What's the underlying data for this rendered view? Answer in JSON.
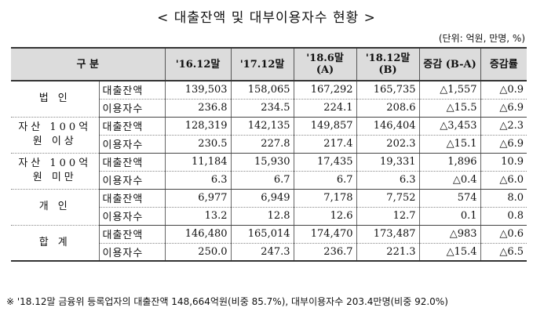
{
  "title": "< 대출잔액 및 대부이용자수 현황 >",
  "unit": "(단위: 억원, 만명, %)",
  "headers": {
    "category": "구  분",
    "c1": "'16.12말",
    "c2": "'17.12말",
    "c3": "'18.6말 (A)",
    "c4": "'18.12말 (B)",
    "change": "증감 (B-A)",
    "rate": "증감률"
  },
  "groups": [
    {
      "label": "법 인",
      "rows": [
        {
          "sub": "대출잔액",
          "c1": "139,503",
          "c2": "158,065",
          "c3": "167,292",
          "c4": "165,735",
          "change": "△1,557",
          "rate": "△0.9"
        },
        {
          "sub": "이용자수",
          "c1": "236.8",
          "c2": "234.5",
          "c3": "224.1",
          "c4": "208.6",
          "change": "△15.5",
          "rate": "△6.9"
        }
      ]
    },
    {
      "label": "자산 100억원 이상",
      "rows": [
        {
          "sub": "대출잔액",
          "c1": "128,319",
          "c2": "142,135",
          "c3": "149,857",
          "c4": "146,404",
          "change": "△3,453",
          "rate": "△2.3"
        },
        {
          "sub": "이용자수",
          "c1": "230.5",
          "c2": "227.8",
          "c3": "217.4",
          "c4": "202.3",
          "change": "△15.1",
          "rate": "△6.9"
        }
      ]
    },
    {
      "label": "자산 100억원 미만",
      "rows": [
        {
          "sub": "대출잔액",
          "c1": "11,184",
          "c2": "15,930",
          "c3": "17,435",
          "c4": "19,331",
          "change": "1,896",
          "rate": "10.9"
        },
        {
          "sub": "이용자수",
          "c1": "6.3",
          "c2": "6.7",
          "c3": "6.7",
          "c4": "6.3",
          "change": "△0.4",
          "rate": "△6.0"
        }
      ]
    },
    {
      "label": "개 인",
      "rows": [
        {
          "sub": "대출잔액",
          "c1": "6,977",
          "c2": "6,949",
          "c3": "7,178",
          "c4": "7,752",
          "change": "574",
          "rate": "8.0"
        },
        {
          "sub": "이용자수",
          "c1": "13.2",
          "c2": "12.8",
          "c3": "12.6",
          "c4": "12.7",
          "change": "0.1",
          "rate": "0.8"
        }
      ]
    },
    {
      "label": "합 계",
      "rows": [
        {
          "sub": "대출잔액",
          "c1": "146,480",
          "c2": "165,014",
          "c3": "174,470",
          "c4": "173,487",
          "change": "△983",
          "rate": "△0.6"
        },
        {
          "sub": "이용자수",
          "c1": "250.0",
          "c2": "247.3",
          "c3": "236.7",
          "c4": "221.3",
          "change": "△15.4",
          "rate": "△6.5"
        }
      ]
    }
  ],
  "footnote": "※ '18.12말 금융위 등록업자의 대출잔액 148,664억원(비중 85.7%), 대부이용자수 203.4만명(비중 92.0%)"
}
